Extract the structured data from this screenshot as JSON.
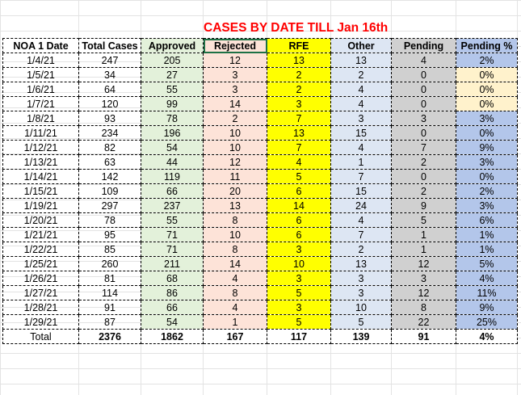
{
  "sheet": {
    "title": "CASES BY DATE TILL Jan 16th",
    "headers": [
      "NOA 1 Date",
      "Total Cases",
      "Approved",
      "Rejected",
      "RFE",
      "Other",
      "Pending",
      "Pending %"
    ],
    "rows": [
      [
        "1/4/21",
        "247",
        "205",
        "12",
        "13",
        "13",
        "4",
        "2%"
      ],
      [
        "1/5/21",
        "34",
        "27",
        "3",
        "2",
        "2",
        "0",
        "0%"
      ],
      [
        "1/6/21",
        "64",
        "55",
        "3",
        "2",
        "4",
        "0",
        "0%"
      ],
      [
        "1/7/21",
        "120",
        "99",
        "14",
        "3",
        "4",
        "0",
        "0%"
      ],
      [
        "1/8/21",
        "93",
        "78",
        "2",
        "7",
        "3",
        "3",
        "3%"
      ],
      [
        "1/11/21",
        "234",
        "196",
        "10",
        "13",
        "15",
        "0",
        "0%"
      ],
      [
        "1/12/21",
        "82",
        "54",
        "10",
        "7",
        "4",
        "7",
        "9%"
      ],
      [
        "1/13/21",
        "63",
        "44",
        "12",
        "4",
        "1",
        "2",
        "3%"
      ],
      [
        "1/14/21",
        "142",
        "119",
        "11",
        "5",
        "7",
        "0",
        "0%"
      ],
      [
        "1/15/21",
        "109",
        "66",
        "20",
        "6",
        "15",
        "2",
        "2%"
      ],
      [
        "1/19/21",
        "297",
        "237",
        "13",
        "14",
        "24",
        "9",
        "3%"
      ],
      [
        "1/20/21",
        "78",
        "55",
        "8",
        "6",
        "4",
        "5",
        "6%"
      ],
      [
        "1/21/21",
        "95",
        "71",
        "10",
        "6",
        "7",
        "1",
        "1%"
      ],
      [
        "1/22/21",
        "85",
        "71",
        "8",
        "3",
        "2",
        "1",
        "1%"
      ],
      [
        "1/25/21",
        "260",
        "211",
        "14",
        "10",
        "13",
        "12",
        "5%"
      ],
      [
        "1/26/21",
        "81",
        "68",
        "4",
        "3",
        "3",
        "3",
        "4%"
      ],
      [
        "1/27/21",
        "114",
        "86",
        "8",
        "5",
        "3",
        "12",
        "11%"
      ],
      [
        "1/28/21",
        "91",
        "66",
        "4",
        "3",
        "10",
        "8",
        "9%"
      ],
      [
        "1/29/21",
        "87",
        "54",
        "1",
        "5",
        "5",
        "22",
        "25%"
      ]
    ],
    "total": [
      "Total",
      "2376",
      "1862",
      "167",
      "117",
      "139",
      "91",
      "4%"
    ]
  },
  "colors": {
    "title": "#ff0000",
    "approved": "#e3f1da",
    "rejected": "#fde3d8",
    "rfe": "#ffff00",
    "other": "#dde6f3",
    "pending": "#d0d0d0",
    "pending_pct": "#b3c6ea",
    "pending_pct_highlight": "#fff2cc",
    "selection": "#1e7145"
  }
}
